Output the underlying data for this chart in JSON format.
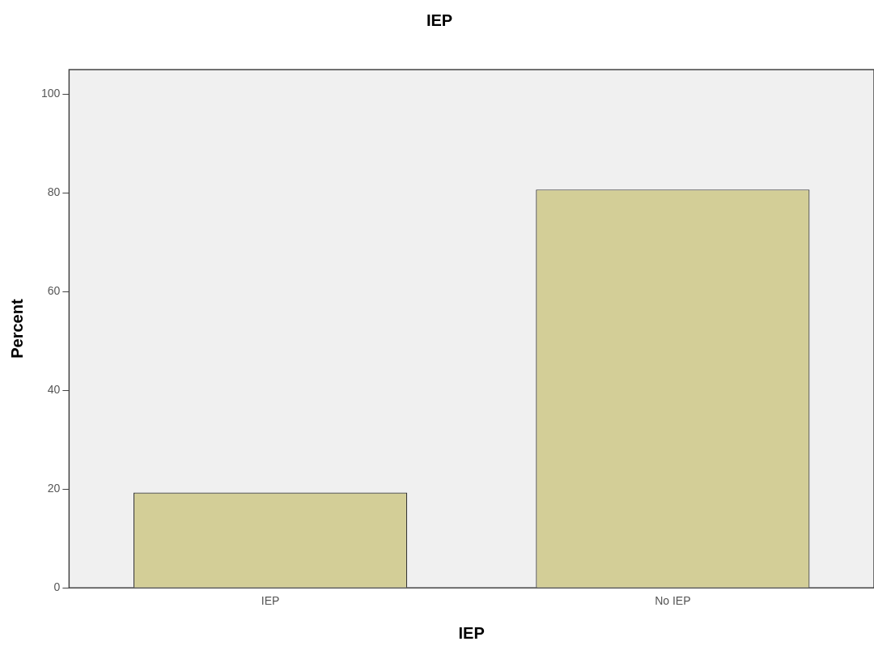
{
  "chart_data": {
    "type": "bar",
    "title": "IEP",
    "xlabel": "IEP",
    "ylabel": "Percent",
    "categories": [
      "IEP",
      "No IEP"
    ],
    "values": [
      19.3,
      80.7
    ],
    "color": "#d3ce97",
    "ylim": [
      0,
      105
    ],
    "yticks": [
      0,
      20,
      40,
      60,
      80,
      100
    ],
    "grid": false,
    "legend": false
  }
}
